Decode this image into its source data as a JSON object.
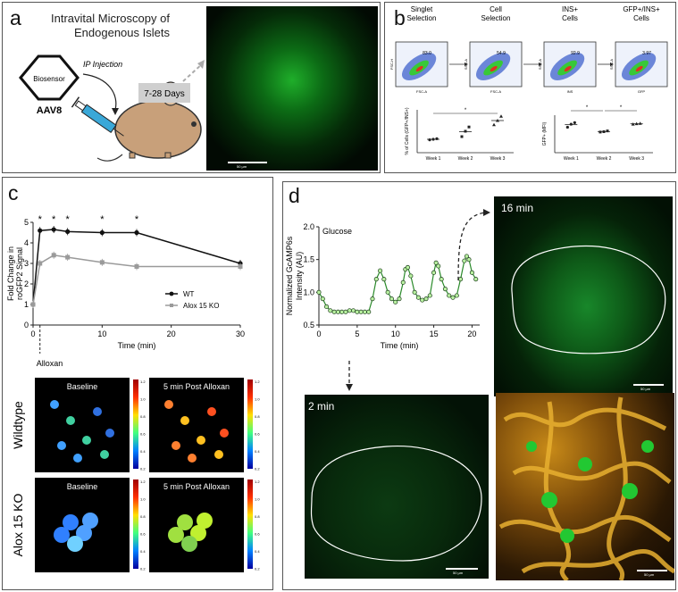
{
  "panels": {
    "a": {
      "label": "a",
      "title_line1": "Intravital Microscopy of",
      "title_line2": "Endogenous Islets",
      "biosensor": "Biosensor",
      "vector": "AAV8",
      "injection": "IP Injection",
      "duration": "7-28 Days",
      "scalebar": "50 µm"
    },
    "b": {
      "label": "b",
      "gates": [
        {
          "title": "Singlet\nSelection",
          "value": "83.0",
          "xaxis": "FSC-A",
          "yaxis": "FSC-H"
        },
        {
          "title": "Cell\nSelection",
          "value": "54.9",
          "xaxis": "FSC-A",
          "yaxis": "SSC-A"
        },
        {
          "title": "INS+\nCells",
          "value": "92.9",
          "xaxis": "INS",
          "yaxis": "SSC-A"
        },
        {
          "title": "GFP+/INS+\nCells",
          "value": "3.97",
          "xaxis": "GFP",
          "yaxis": "SSC-A"
        }
      ],
      "left_ylabel": "% of Cells (GFP+/INS+)",
      "right_ylabel": "GFP+ (MFI)",
      "weeks": [
        "Week 1",
        "Week 2",
        "Week 3"
      ],
      "sig": "*"
    },
    "c": {
      "label": "c",
      "ylabel_line1": "Fold Change in",
      "ylabel_line2": "roGFP2 Signal",
      "xlabel": "Time (min)",
      "alloxan": "Alloxan",
      "legend_wt": "WT",
      "legend_ko": "Alox 15 KO",
      "heatmap_baseline": "Baseline",
      "heatmap_post": "5 min Post Alloxan",
      "row_wildtype": "Wildtype",
      "row_ko": "Alox 15 KO",
      "colorbar_ticks": [
        "1.2",
        "1.0",
        "0.8",
        "0.6",
        "0.4",
        "0.2"
      ]
    },
    "d": {
      "label": "d",
      "ylabel_line1": "Normalized GcAMP6s",
      "ylabel_line2": "Intensity (AU)",
      "xlabel": "Time (min)",
      "glucose": "Glucose",
      "time_late": "16 min",
      "time_early": "2 min",
      "scalebar": "50 µm"
    }
  },
  "chart_data": [
    {
      "id": "c-roGFP2",
      "type": "line",
      "x": [
        0,
        1,
        3,
        5,
        10,
        15,
        30
      ],
      "xlim": [
        0,
        30
      ],
      "ylim": [
        0,
        5
      ],
      "xticks": [
        0,
        10,
        20,
        30
      ],
      "yticks": [
        0,
        1,
        2,
        3,
        4,
        5
      ],
      "xlabel": "Time (min)",
      "ylabel": "Fold Change in roGFP2 Signal",
      "series": [
        {
          "name": "WT",
          "color": "#111111",
          "values": [
            1.0,
            4.6,
            4.65,
            4.55,
            4.5,
            4.5,
            3.0
          ]
        },
        {
          "name": "Alox 15 KO",
          "color": "#9a9a9a",
          "values": [
            1.0,
            3.0,
            3.4,
            3.3,
            3.05,
            2.85,
            2.85
          ]
        }
      ],
      "significance_x": [
        1,
        3,
        5,
        10,
        15
      ]
    },
    {
      "id": "d-GCaMP6s",
      "type": "line",
      "xlim": [
        0,
        21
      ],
      "ylim": [
        0.5,
        2.0
      ],
      "xticks": [
        0,
        5,
        10,
        15,
        20
      ],
      "yticks": [
        0.5,
        1.0,
        1.5,
        2.0
      ],
      "xlabel": "Time (min)",
      "ylabel": "Normalized GcAMP6s Intensity (AU)",
      "series": [
        {
          "name": "",
          "color": "#2a8a2a",
          "x": [
            0,
            0.5,
            1,
            1.5,
            2,
            2.5,
            3,
            3.5,
            4,
            4.5,
            5,
            5.5,
            6,
            6.5,
            7,
            7.5,
            8,
            8.5,
            9,
            9.5,
            10,
            10.5,
            11,
            11.3,
            11.6,
            12,
            12.5,
            13,
            13.5,
            14,
            14.5,
            15,
            15.3,
            15.6,
            16,
            16.5,
            17,
            17.5,
            18,
            18.5,
            19,
            19.3,
            19.6,
            20,
            20.5
          ],
          "values": [
            1.0,
            0.9,
            0.78,
            0.72,
            0.7,
            0.7,
            0.7,
            0.7,
            0.72,
            0.72,
            0.7,
            0.7,
            0.7,
            0.7,
            0.9,
            1.2,
            1.33,
            1.2,
            1.0,
            0.9,
            0.85,
            0.9,
            1.15,
            1.35,
            1.38,
            1.25,
            1.0,
            0.92,
            0.88,
            0.9,
            0.95,
            1.3,
            1.45,
            1.4,
            1.2,
            1.05,
            0.95,
            0.92,
            0.95,
            1.2,
            1.48,
            1.55,
            1.5,
            1.3,
            1.2
          ]
        }
      ]
    },
    {
      "id": "b-percent",
      "type": "scatter",
      "categories": [
        "Week 1",
        "Week 2",
        "Week 3"
      ],
      "ylabel": "% of Cells (GFP+/INS+)",
      "ylim": [
        0,
        4
      ],
      "series": [
        {
          "name": "Week 1",
          "values": [
            1.2,
            1.25,
            1.3
          ]
        },
        {
          "name": "Week 2",
          "values": [
            1.5,
            2.0,
            2.4
          ]
        },
        {
          "name": "Week 3",
          "values": [
            2.6,
            3.0,
            3.4
          ]
        }
      ]
    },
    {
      "id": "b-mfi",
      "type": "scatter",
      "categories": [
        "Week 1",
        "Week 2",
        "Week 3"
      ],
      "ylabel": "GFP+ (MFI)",
      "ylim": [
        0,
        500
      ],
      "series": [
        {
          "name": "Week 1",
          "values": [
            340,
            380,
            400
          ]
        },
        {
          "name": "Week 2",
          "values": [
            275,
            280,
            290
          ]
        },
        {
          "name": "Week 3",
          "values": [
            380,
            385,
            390
          ]
        }
      ]
    }
  ]
}
